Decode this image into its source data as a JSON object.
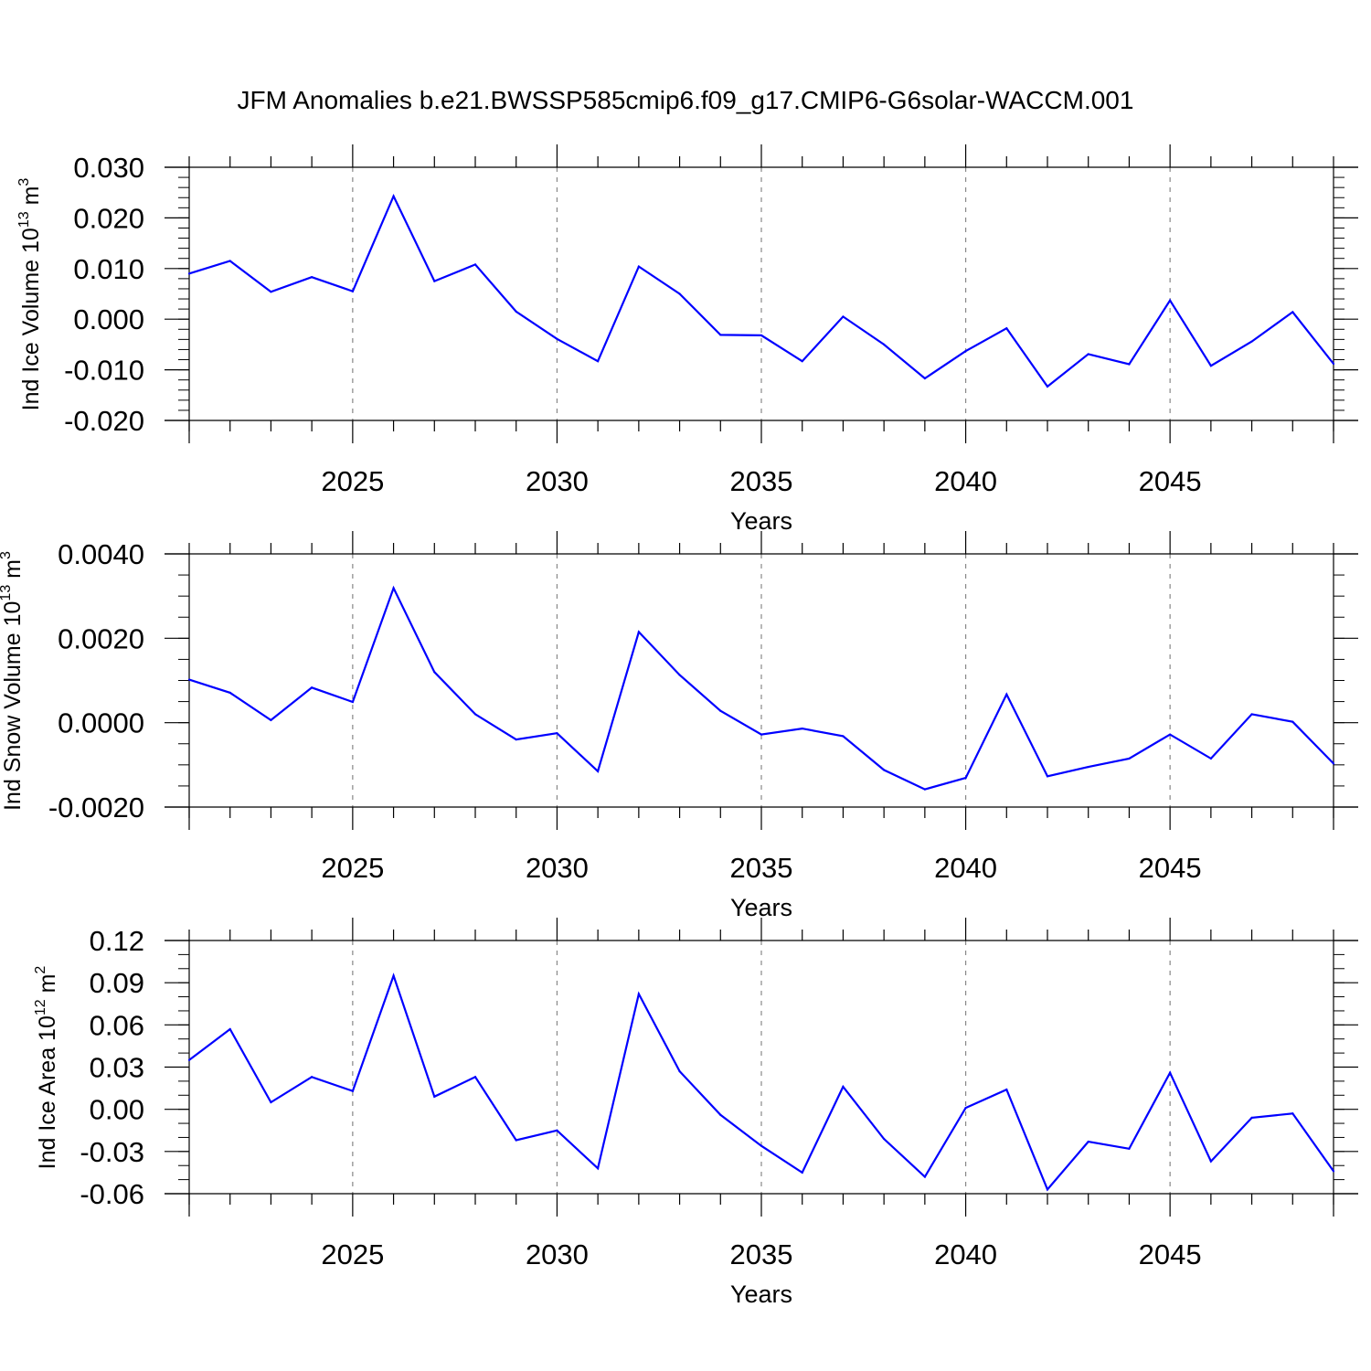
{
  "figure": {
    "title": "JFM Anomalies b.e21.BWSSP585cmip6.f09_g17.CMIP6-G6solar-WACCM.001",
    "line_color": "#0000ff",
    "grid_color": "#888888"
  },
  "chart_data": [
    {
      "type": "line",
      "ylabel": {
        "main": "Ind Ice Volume 10",
        "exp": "13",
        "unit": " m",
        "unit_exp": "3"
      },
      "xlabel": "Years",
      "xlim": [
        2021,
        2049
      ],
      "ylim": [
        -0.02,
        0.03
      ],
      "x_ticks": [
        2025,
        2030,
        2035,
        2040,
        2045
      ],
      "x_tick_labels": [
        "2025",
        "2030",
        "2035",
        "2040",
        "2045"
      ],
      "y_ticks": [
        -0.02,
        -0.01,
        0.0,
        0.01,
        0.02,
        0.03
      ],
      "y_tick_labels": [
        "-0.020",
        "-0.010",
        "0.000",
        "0.010",
        "0.020",
        "0.030"
      ],
      "y_minor_step": 0.002,
      "grid": "x-dashed",
      "series": [
        {
          "x": [
            2021,
            2022,
            2023,
            2024,
            2025,
            2026,
            2027,
            2028,
            2029,
            2030,
            2031,
            2032,
            2033,
            2034,
            2035,
            2036,
            2037,
            2038,
            2039,
            2040,
            2041,
            2042,
            2043,
            2044,
            2045,
            2046,
            2047,
            2048,
            2049
          ],
          "values": [
            0.009,
            0.0115,
            0.0054,
            0.0083,
            0.0055,
            0.0243,
            0.0075,
            0.0108,
            0.0015,
            -0.0039,
            -0.0083,
            0.0104,
            0.005,
            -0.0031,
            -0.0032,
            -0.0083,
            0.0005,
            -0.005,
            -0.0117,
            -0.0063,
            -0.0018,
            -0.0133,
            -0.0069,
            -0.0089,
            0.0037,
            -0.0092,
            -0.0044,
            0.0014,
            -0.0088
          ]
        }
      ]
    },
    {
      "type": "line",
      "ylabel": {
        "main": "Ind Snow Volume 10",
        "exp": "13",
        "unit": " m",
        "unit_exp": "3"
      },
      "xlabel": "Years",
      "xlim": [
        2021,
        2049
      ],
      "ylim": [
        -0.002,
        0.004
      ],
      "x_ticks": [
        2025,
        2030,
        2035,
        2040,
        2045
      ],
      "x_tick_labels": [
        "2025",
        "2030",
        "2035",
        "2040",
        "2045"
      ],
      "y_ticks": [
        -0.002,
        0.0,
        0.002,
        0.004
      ],
      "y_tick_labels": [
        "-0.0020",
        "0.0000",
        "0.0020",
        "0.0040"
      ],
      "y_minor_step": 0.0005,
      "grid": "x-dashed",
      "series": [
        {
          "x": [
            2021,
            2022,
            2023,
            2024,
            2025,
            2026,
            2027,
            2028,
            2029,
            2030,
            2031,
            2032,
            2033,
            2034,
            2035,
            2036,
            2037,
            2038,
            2039,
            2040,
            2041,
            2042,
            2043,
            2044,
            2045,
            2046,
            2047,
            2048,
            2049
          ],
          "values": [
            0.00102,
            0.00071,
            6e-05,
            0.00083,
            0.00049,
            0.00319,
            0.0012,
            0.0002,
            -0.0004,
            -0.00025,
            -0.00115,
            0.00215,
            0.00113,
            0.00028,
            -0.00028,
            -0.00014,
            -0.00032,
            -0.00112,
            -0.00158,
            -0.00131,
            0.00067,
            -0.00127,
            -0.00105,
            -0.00085,
            -0.00028,
            -0.00085,
            0.0002,
            2e-05,
            -0.00097
          ]
        }
      ]
    },
    {
      "type": "line",
      "ylabel": {
        "main": "Ind Ice Area 10",
        "exp": "12",
        "unit": " m",
        "unit_exp": "2"
      },
      "xlabel": "Years",
      "xlim": [
        2021,
        2049
      ],
      "ylim": [
        -0.06,
        0.12
      ],
      "x_ticks": [
        2025,
        2030,
        2035,
        2040,
        2045
      ],
      "x_tick_labels": [
        "2025",
        "2030",
        "2035",
        "2040",
        "2045"
      ],
      "y_ticks": [
        -0.06,
        -0.03,
        0.0,
        0.03,
        0.06,
        0.09,
        0.12
      ],
      "y_tick_labels": [
        "-0.06",
        "-0.03",
        "0.00",
        "0.03",
        "0.06",
        "0.09",
        "0.12"
      ],
      "y_minor_step": 0.01,
      "grid": "x-dashed",
      "series": [
        {
          "x": [
            2021,
            2022,
            2023,
            2024,
            2025,
            2026,
            2027,
            2028,
            2029,
            2030,
            2031,
            2032,
            2033,
            2034,
            2035,
            2036,
            2037,
            2038,
            2039,
            2040,
            2041,
            2042,
            2043,
            2044,
            2045,
            2046,
            2047,
            2048,
            2049
          ],
          "values": [
            0.035,
            0.057,
            0.005,
            0.023,
            0.013,
            0.095,
            0.009,
            0.023,
            -0.022,
            -0.015,
            -0.042,
            0.082,
            0.027,
            -0.004,
            -0.026,
            -0.045,
            0.016,
            -0.021,
            -0.048,
            0.001,
            0.014,
            -0.057,
            -0.023,
            -0.028,
            0.026,
            -0.037,
            -0.006,
            -0.003,
            -0.044
          ]
        }
      ]
    }
  ]
}
